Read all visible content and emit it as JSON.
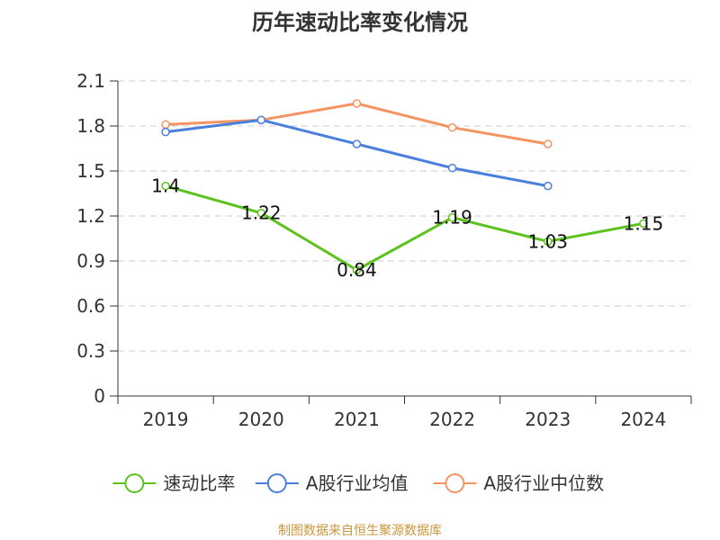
{
  "chart_data": {
    "type": "line",
    "title": "历年速动比率变化情况",
    "categories": [
      "2019",
      "2020",
      "2021",
      "2022",
      "2023",
      "2024"
    ],
    "y_ticks": [
      "0",
      "0.3",
      "0.6",
      "0.9",
      "1.2",
      "1.5",
      "1.8",
      "2.1"
    ],
    "ylim": [
      0,
      2.1
    ],
    "grid": "horizontal-dashed",
    "legend_position": "bottom",
    "series": [
      {
        "name": "速动比率",
        "color": "#5cc21e",
        "values": [
          1.4,
          1.22,
          0.84,
          1.19,
          1.03,
          1.15
        ],
        "labels": [
          "1.4",
          "1.22",
          "0.84",
          "1.19",
          "1.03",
          "1.15"
        ]
      },
      {
        "name": "A股行业均值",
        "color": "#4a7fdb",
        "values": [
          1.76,
          1.84,
          1.68,
          1.52,
          1.4,
          null
        ]
      },
      {
        "name": "A股行业中位数",
        "color": "#f59363",
        "values": [
          1.81,
          1.84,
          1.95,
          1.79,
          1.68,
          null
        ]
      }
    ],
    "source": "制图数据来自恒生聚源数据库"
  }
}
